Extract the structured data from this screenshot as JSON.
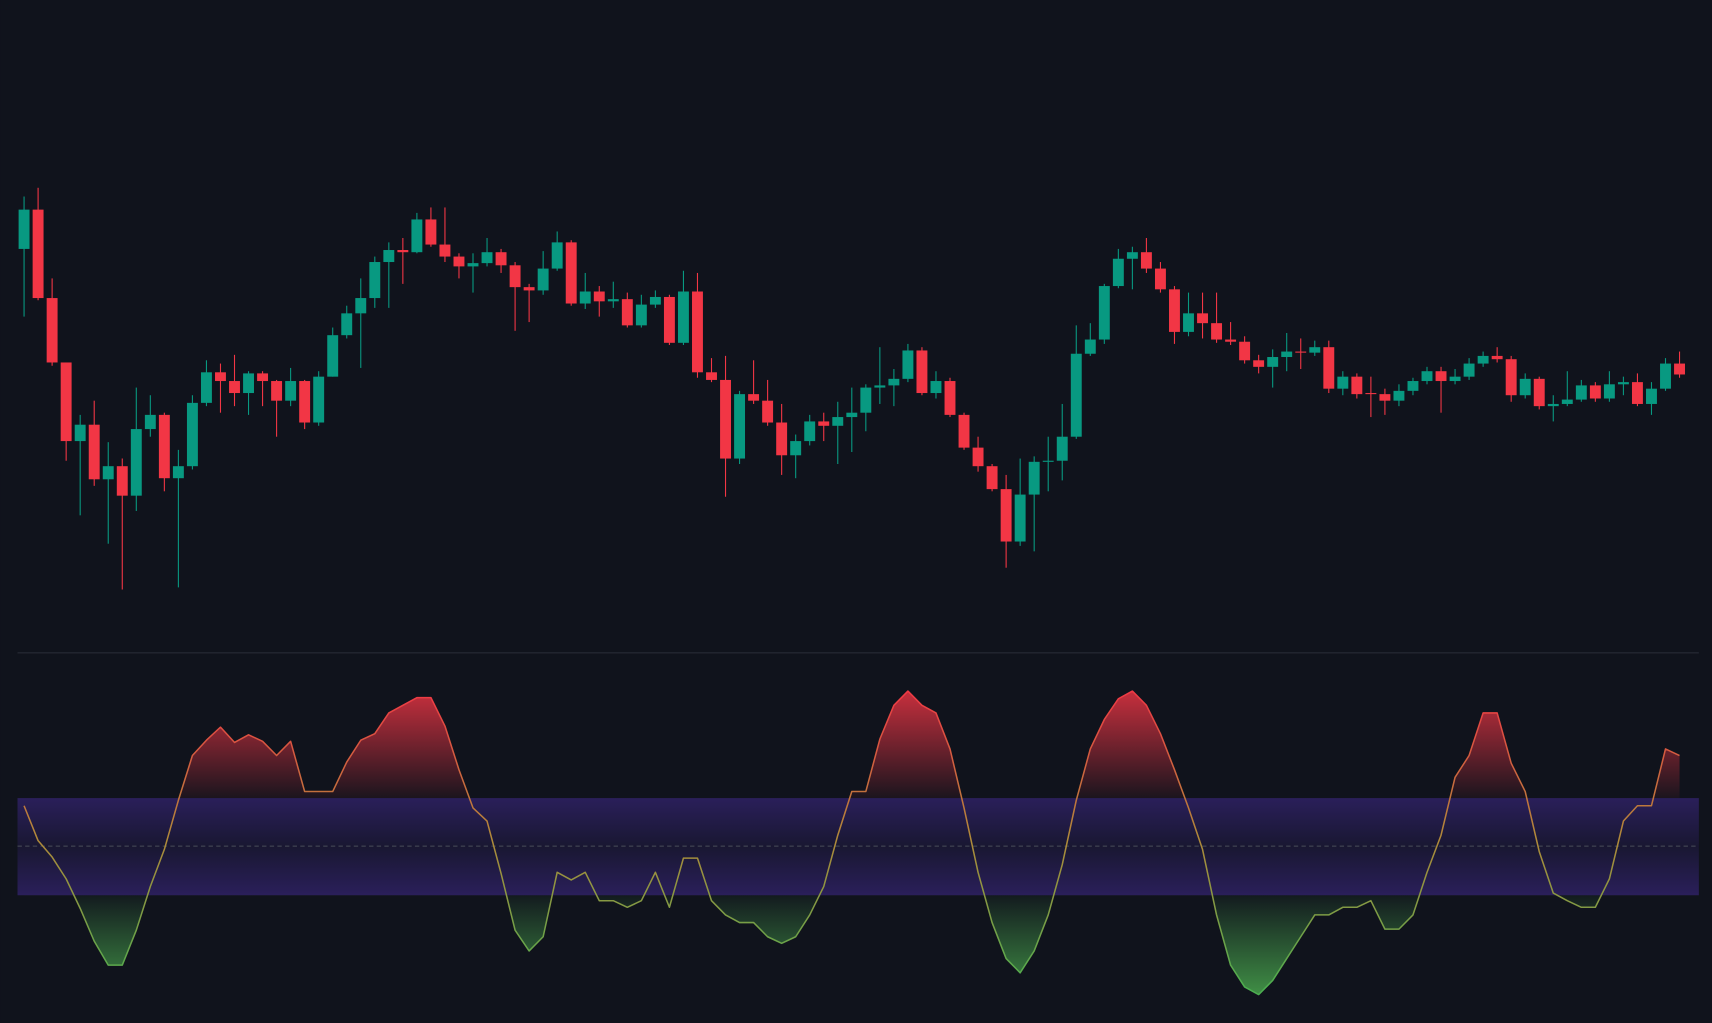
{
  "chart_data": [
    {
      "type": "candlestick",
      "up_color": "#089981",
      "down_color": "#f23645",
      "ylim": [
        0,
        600
      ],
      "open": [
        372,
        408,
        327,
        268,
        196,
        211,
        161,
        173,
        146,
        207,
        220,
        162,
        173,
        231,
        259,
        251,
        240,
        258,
        251,
        233,
        251,
        213,
        255,
        293,
        313,
        327,
        360,
        371,
        369,
        399,
        376,
        365,
        356,
        359,
        369,
        357,
        337,
        334,
        354,
        378,
        322,
        333,
        324,
        326,
        302,
        321,
        328,
        286,
        333,
        259,
        252,
        180,
        239,
        233,
        213,
        183,
        196,
        214,
        210,
        218,
        222,
        245,
        247,
        253,
        279,
        240,
        251,
        220,
        190,
        173,
        152,
        104,
        147,
        177,
        178,
        200,
        276,
        289,
        338,
        363,
        369,
        354,
        335,
        296,
        313,
        304,
        289,
        287,
        270,
        264,
        273,
        278,
        277,
        282,
        244,
        255,
        240,
        239,
        233,
        242,
        251,
        260,
        251,
        255,
        267,
        274,
        271,
        238,
        253,
        228,
        230,
        234,
        247,
        235,
        248,
        250,
        230,
        244,
        267
      ],
      "high": [
        420,
        428,
        345,
        268,
        220,
        233,
        195,
        180,
        245,
        238,
        222,
        188,
        238,
        270,
        267,
        275,
        260,
        260,
        252,
        263,
        252,
        260,
        300,
        320,
        345,
        365,
        378,
        382,
        405,
        410,
        410,
        368,
        368,
        382,
        372,
        360,
        340,
        370,
        388,
        380,
        350,
        338,
        342,
        332,
        330,
        334,
        330,
        352,
        350,
        272,
        274,
        242,
        270,
        252,
        230,
        202,
        220,
        222,
        232,
        245,
        248,
        282,
        262,
        285,
        282,
        260,
        254,
        222,
        200,
        175,
        165,
        180,
        182,
        200,
        230,
        302,
        304,
        340,
        372,
        374,
        382,
        360,
        338,
        332,
        332,
        332,
        305,
        292,
        275,
        280,
        295,
        290,
        288,
        288,
        260,
        258,
        255,
        244,
        248,
        254,
        264,
        264,
        262,
        272,
        278,
        282,
        274,
        258,
        255,
        238,
        260,
        252,
        250,
        260,
        255,
        258,
        250,
        272,
        278
      ],
      "low": [
        310,
        325,
        265,
        178,
        128,
        155,
        102,
        60,
        132,
        200,
        150,
        62,
        170,
        228,
        222,
        228,
        220,
        228,
        200,
        228,
        207,
        210,
        255,
        290,
        263,
        318,
        318,
        340,
        368,
        374,
        360,
        345,
        332,
        356,
        350,
        297,
        305,
        330,
        352,
        320,
        317,
        310,
        318,
        300,
        300,
        318,
        284,
        284,
        254,
        250,
        145,
        175,
        230,
        210,
        165,
        162,
        192,
        196,
        175,
        186,
        205,
        230,
        228,
        250,
        238,
        235,
        218,
        188,
        168,
        150,
        80,
        100,
        95,
        150,
        160,
        198,
        274,
        285,
        336,
        335,
        350,
        332,
        285,
        292,
        290,
        286,
        284,
        267,
        258,
        245,
        260,
        262,
        274,
        240,
        238,
        235,
        218,
        220,
        228,
        238,
        248,
        222,
        248,
        252,
        264,
        268,
        232,
        235,
        225,
        214,
        228,
        232,
        232,
        232,
        238,
        228,
        220,
        242,
        254
      ],
      "close": [
        408,
        327,
        268,
        196,
        211,
        161,
        173,
        146,
        207,
        220,
        162,
        173,
        231,
        259,
        251,
        240,
        258,
        251,
        233,
        251,
        213,
        255,
        293,
        313,
        327,
        360,
        371,
        369,
        399,
        376,
        365,
        356,
        359,
        369,
        357,
        337,
        334,
        354,
        378,
        322,
        333,
        324,
        326,
        302,
        321,
        328,
        286,
        333,
        259,
        252,
        180,
        239,
        233,
        213,
        183,
        196,
        214,
        210,
        218,
        222,
        245,
        247,
        253,
        279,
        240,
        251,
        220,
        190,
        173,
        152,
        104,
        147,
        177,
        178,
        200,
        276,
        289,
        338,
        363,
        369,
        354,
        335,
        296,
        313,
        304,
        289,
        287,
        270,
        264,
        273,
        278,
        277,
        282,
        244,
        255,
        239,
        239,
        233,
        242,
        251,
        260,
        251,
        255,
        267,
        274,
        271,
        238,
        253,
        228,
        230,
        234,
        247,
        235,
        248,
        250,
        230,
        244,
        267,
        257
      ]
    },
    {
      "type": "oscillator",
      "ylim": [
        -162,
        177
      ],
      "band": [
        -45,
        44
      ],
      "midline": 0,
      "up_color": "#f23645",
      "down_color": "#4caf50",
      "band_color": "#2a1f5a",
      "values": [
        37,
        5,
        -10,
        -30,
        -57,
        -87,
        -109,
        -109,
        -77,
        -37,
        -3,
        42,
        83,
        97,
        109,
        95,
        102,
        96,
        83,
        96,
        50,
        50,
        50,
        77,
        97,
        103,
        122,
        129,
        136,
        136,
        110,
        70,
        35,
        23,
        -25,
        -77,
        -96,
        -83,
        -24,
        -31,
        -24,
        -50,
        -50,
        -56,
        -50,
        -24,
        -56,
        -11,
        -11,
        -50,
        -63,
        -70,
        -70,
        -83,
        -89,
        -83,
        -63,
        -37,
        10,
        50,
        50,
        98,
        129,
        142,
        129,
        122,
        89,
        35,
        -24,
        -70,
        -103,
        -116,
        -96,
        -63,
        -17,
        42,
        89,
        116,
        135,
        142,
        129,
        103,
        70,
        35,
        -3,
        -63,
        -109,
        -129,
        -136,
        -123,
        -103,
        -83,
        -63,
        -63,
        -56,
        -56,
        -50,
        -76,
        -76,
        -63,
        -24,
        10,
        63,
        83,
        122,
        122,
        76,
        50,
        -5,
        -43,
        -50,
        -56,
        -56,
        -30,
        23,
        37,
        37,
        89,
        83
      ]
    }
  ]
}
